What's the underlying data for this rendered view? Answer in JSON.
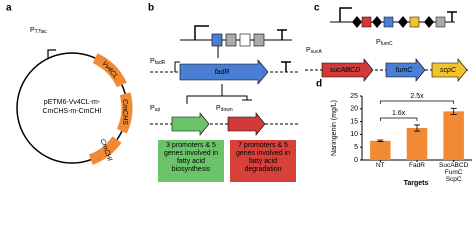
{
  "panel_a": {
    "letter": "a",
    "promoter": "P",
    "promoter_sub": "T7lac",
    "genes": [
      "Vv4CL",
      "CmCHS",
      "CmCHI"
    ],
    "plasmid_line1": "pETM6-Vv4CL-m-",
    "plasmid_line2": "CmCHS-m-CmCHI"
  },
  "panel_b": {
    "letter": "b",
    "promoter_fadR": "P",
    "promoter_fadR_sub": "fadR",
    "gene": "fadR",
    "promoter_up": "P",
    "promoter_up_sub": "up",
    "promoter_down": "P",
    "promoter_down_sub": "down",
    "box_up": "3 promoters & 5 genes involved in fatty acid biosynthesis",
    "box_down": "7 promoters & 5 genes involved in fatty acid degradation"
  },
  "panel_c": {
    "letter": "c",
    "promoter_sucA": "P",
    "promoter_sucA_sub": "sucA",
    "gene_sucABCD": "sucABCD",
    "promoter_fumC": "P",
    "promoter_fumC_sub": "fumC",
    "gene_fumC": "fumC",
    "gene_scpC": "scpC"
  },
  "chart_data": {
    "type": "bar",
    "letter": "d",
    "y_label": "Naringenin (mg/L)",
    "x_label": "Targets",
    "categories": [
      "NT",
      "FadR",
      "SucABCD FumC ScpC"
    ],
    "values": [
      7.5,
      12.5,
      19
    ],
    "errors": [
      0.3,
      1.2,
      1.2
    ],
    "color": "#f28a35",
    "ylim": [
      0,
      25
    ],
    "yticks": [
      0,
      5,
      10,
      15,
      20,
      25
    ],
    "annotations": [
      "1.6x",
      "2.5x"
    ]
  }
}
